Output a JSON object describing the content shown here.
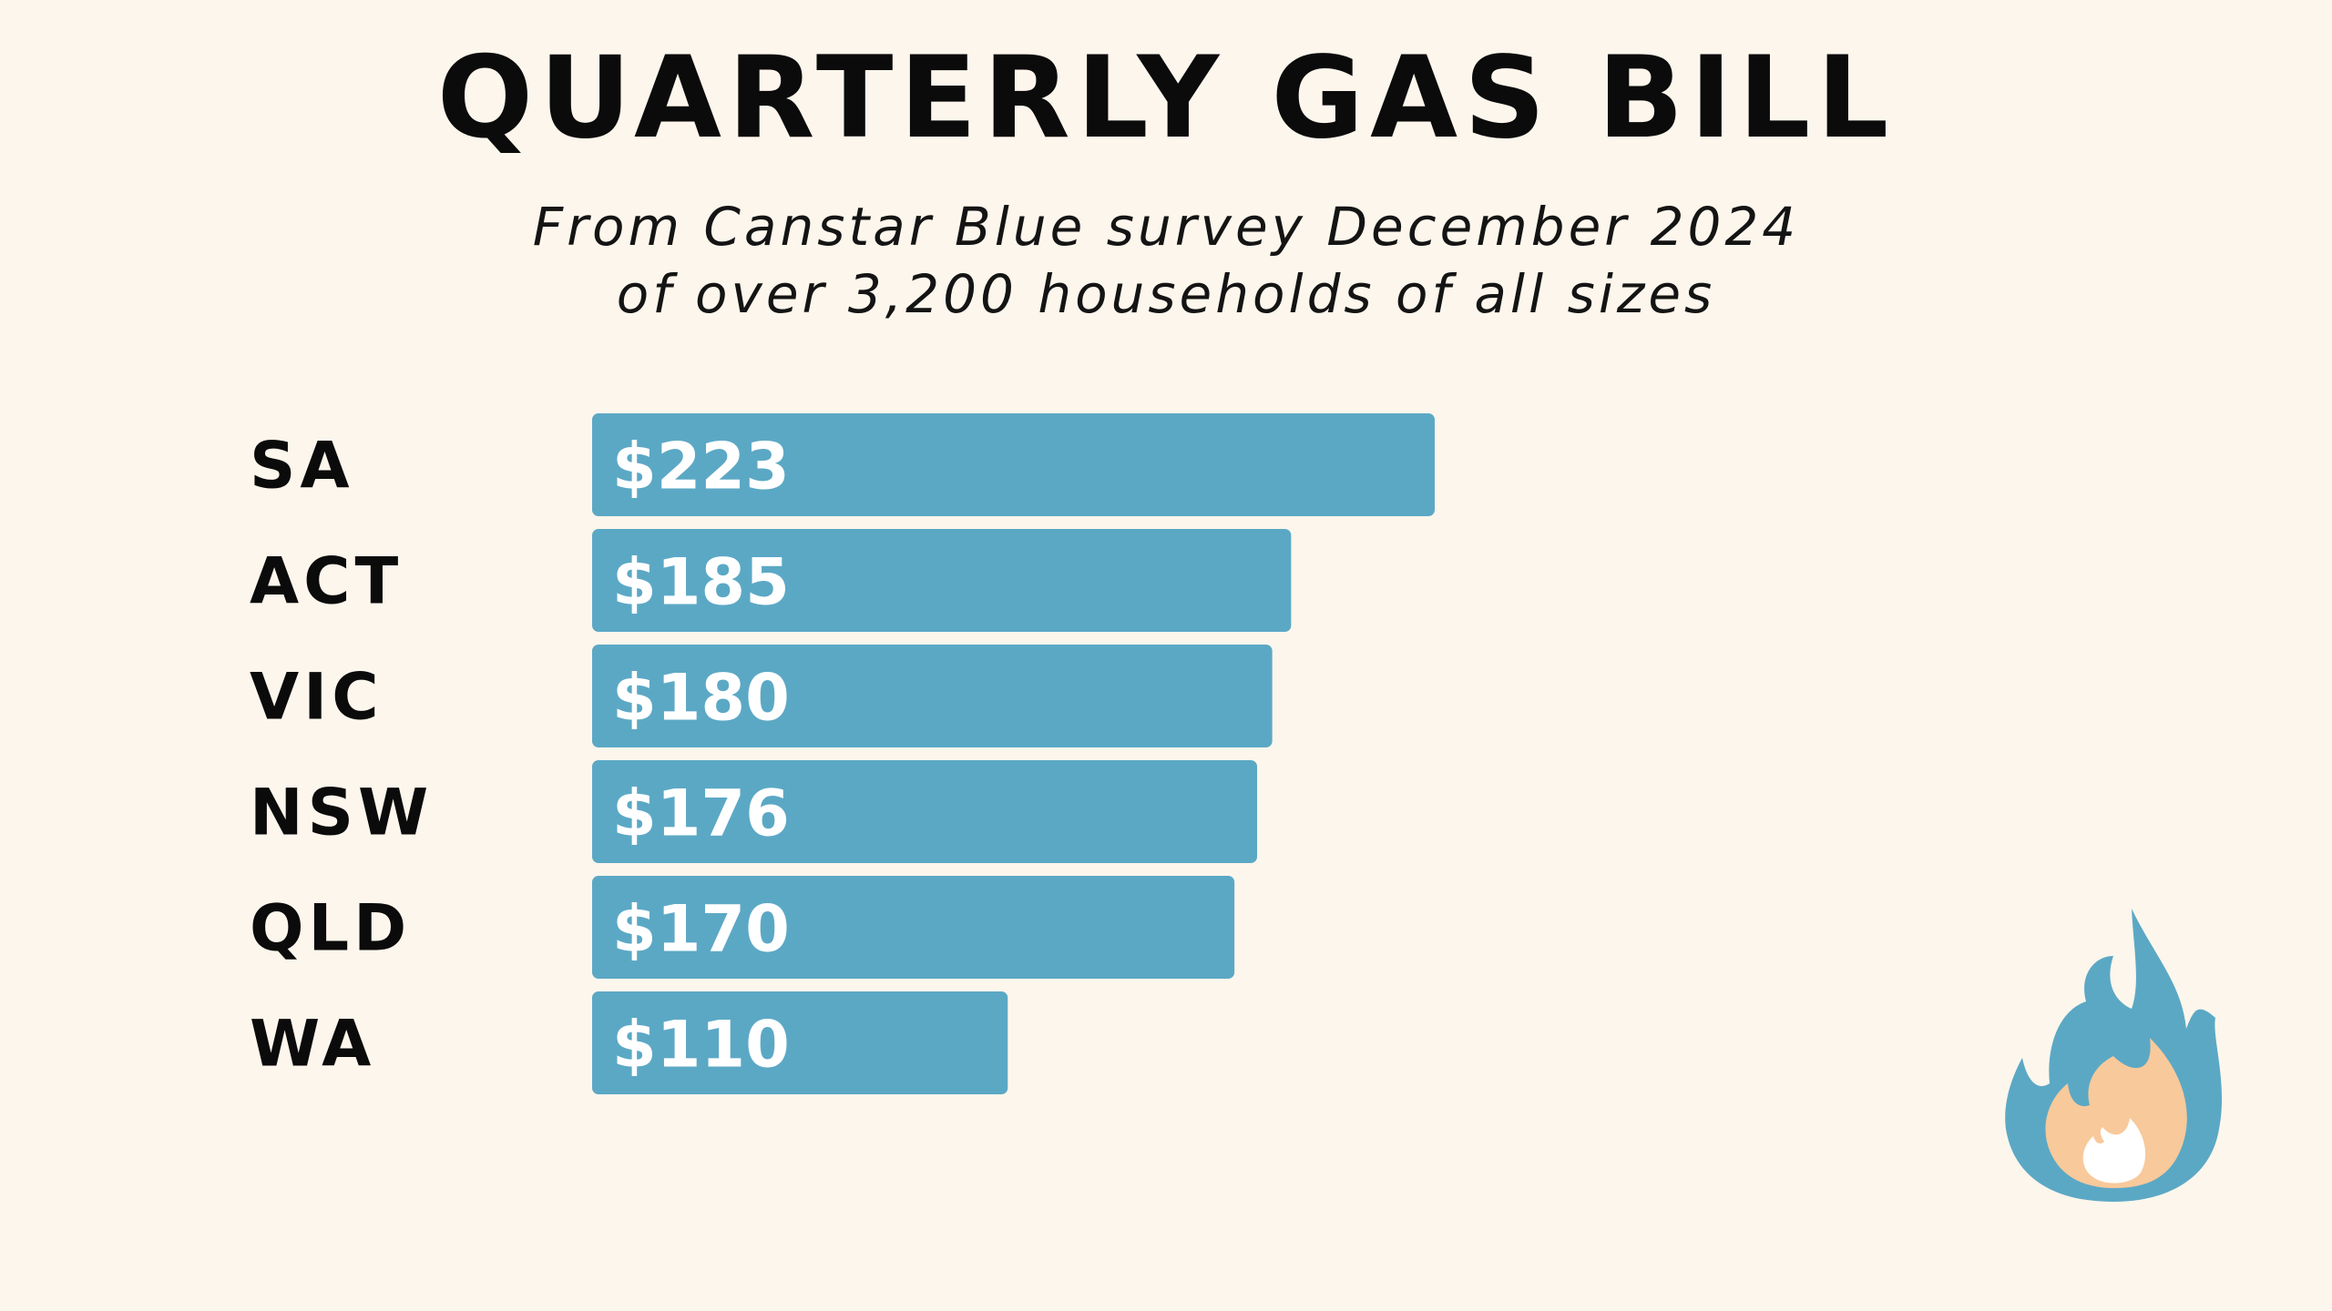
{
  "chart_data": {
    "type": "bar",
    "orientation": "horizontal",
    "title": "QUARTERLY GAS BILL",
    "subtitle": [
      "From Canstar Blue survey December 2024",
      "of over 3,200 households of all sizes"
    ],
    "categories": [
      "SA",
      "ACT",
      "VIC",
      "NSW",
      "QLD",
      "WA"
    ],
    "values": [
      223,
      185,
      180,
      176,
      170,
      110
    ],
    "value_labels": [
      "$223",
      "$185",
      "$180",
      "$176",
      "$170",
      "$110"
    ],
    "xlabel": "",
    "ylabel": "",
    "grid": false,
    "bar_color": "#5ba8c5"
  },
  "colors": {
    "background": "#fdf6ec",
    "bar": "#5ba8c5",
    "flame_outer": "#5ba8c5",
    "flame_inner": "#f8c99a",
    "flame_core": "#ffffff"
  },
  "decoration": {
    "icon": "flame-icon"
  }
}
